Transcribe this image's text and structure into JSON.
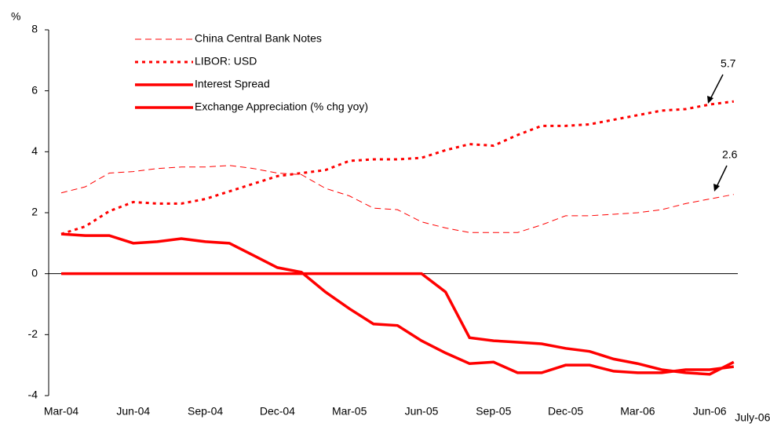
{
  "chart_data": {
    "type": "line",
    "y_unit": "%",
    "categories": [
      "Mar-04",
      null,
      null,
      "Jun-04",
      null,
      null,
      "Sep-04",
      null,
      null,
      "Dec-04",
      null,
      null,
      "Mar-05",
      null,
      null,
      "Jun-05",
      null,
      null,
      "Sep-05",
      null,
      null,
      "Dec-05",
      null,
      null,
      "Mar-06",
      null,
      null,
      "Jun-06",
      "July-06"
    ],
    "ylim": [
      -4,
      8
    ],
    "yticks": [
      -4,
      -2,
      0,
      2,
      4,
      6,
      8
    ],
    "series": [
      {
        "name": "China Central Bank Notes",
        "color": "#ff0000",
        "dash": "long",
        "width": 1,
        "values": [
          2.65,
          2.85,
          3.3,
          3.35,
          3.45,
          3.5,
          3.5,
          3.55,
          3.45,
          3.3,
          3.25,
          2.8,
          2.55,
          2.15,
          2.1,
          1.7,
          1.5,
          1.35,
          1.35,
          1.35,
          1.6,
          1.9,
          1.9,
          1.95,
          2.0,
          2.1,
          2.3,
          2.45,
          2.6
        ]
      },
      {
        "name": "LIBOR: USD",
        "color": "#ff0000",
        "dash": "dot",
        "width": 3,
        "values": [
          1.3,
          1.55,
          2.05,
          2.35,
          2.3,
          2.3,
          2.45,
          2.7,
          2.95,
          3.2,
          3.3,
          3.4,
          3.7,
          3.75,
          3.75,
          3.8,
          4.05,
          4.25,
          4.2,
          4.55,
          4.85,
          4.85,
          4.9,
          5.05,
          5.2,
          5.35,
          5.4,
          5.55,
          5.65
        ]
      },
      {
        "name": "Interest Spread",
        "color": "#ff0000",
        "dash": "solid",
        "width": 3.5,
        "values": [
          1.3,
          1.25,
          1.25,
          1.0,
          1.05,
          1.15,
          1.05,
          1.0,
          0.6,
          0.2,
          0.05,
          -0.6,
          -1.15,
          -1.65,
          -1.7,
          -2.2,
          -2.6,
          -2.95,
          -2.9,
          -3.25,
          -3.25,
          -3.0,
          -3.0,
          -3.2,
          -3.25,
          -3.25,
          -3.15,
          -3.15,
          -3.05
        ]
      },
      {
        "name": "Exchange Appreciation (% chg yoy)",
        "color": "#ff0000",
        "dash": "solid",
        "width": 3.5,
        "values": [
          0,
          0,
          0,
          0,
          0,
          0,
          0,
          0,
          0,
          0,
          0,
          0,
          0,
          0,
          0,
          0,
          -0.6,
          -2.1,
          -2.2,
          -2.25,
          -2.3,
          -2.45,
          -2.55,
          -2.8,
          -2.95,
          -3.15,
          -3.25,
          -3.3,
          -2.9
        ]
      }
    ],
    "annotations": [
      "5.7",
      "2.6"
    ]
  }
}
